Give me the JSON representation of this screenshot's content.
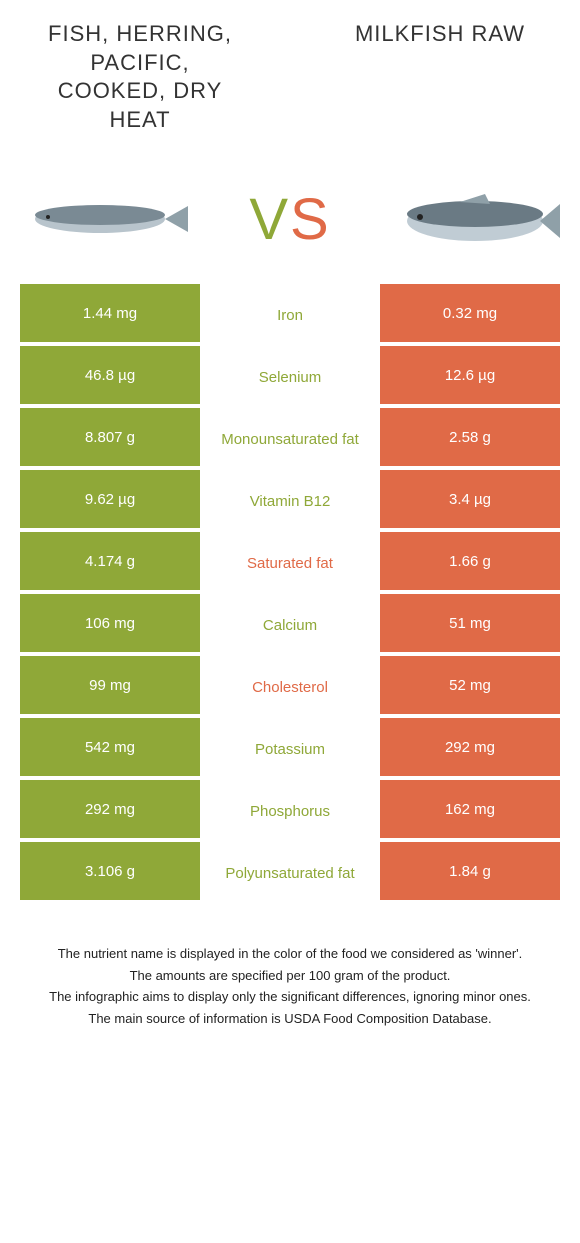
{
  "titles": {
    "left": "Fish, herring, Pacific, cooked, dry heat",
    "right": "Milkfish raw"
  },
  "vs": {
    "v": "V",
    "s": "S"
  },
  "colors": {
    "left_bg": "#8fa838",
    "right_bg": "#e06a47",
    "left_text": "#ffffff",
    "right_text": "#ffffff",
    "green": "#8fa838",
    "orange": "#e06a47",
    "background": "#ffffff"
  },
  "rows": [
    {
      "left": "1.44 mg",
      "mid": "Iron",
      "right": "0.32 mg",
      "winner": "left"
    },
    {
      "left": "46.8 µg",
      "mid": "Selenium",
      "right": "12.6 µg",
      "winner": "left"
    },
    {
      "left": "8.807 g",
      "mid": "Monounsaturated fat",
      "right": "2.58 g",
      "winner": "left"
    },
    {
      "left": "9.62 µg",
      "mid": "Vitamin B12",
      "right": "3.4 µg",
      "winner": "left"
    },
    {
      "left": "4.174 g",
      "mid": "Saturated fat",
      "right": "1.66 g",
      "winner": "right"
    },
    {
      "left": "106 mg",
      "mid": "Calcium",
      "right": "51 mg",
      "winner": "left"
    },
    {
      "left": "99 mg",
      "mid": "Cholesterol",
      "right": "52 mg",
      "winner": "right"
    },
    {
      "left": "542 mg",
      "mid": "Potassium",
      "right": "292 mg",
      "winner": "left"
    },
    {
      "left": "292 mg",
      "mid": "Phosphorus",
      "right": "162 mg",
      "winner": "left"
    },
    {
      "left": "3.106 g",
      "mid": "Polyunsaturated fat",
      "right": "1.84 g",
      "winner": "left"
    }
  ],
  "footer": [
    "The nutrient name is displayed in the color of the food we considered as 'winner'.",
    "The amounts are specified per 100 gram of the product.",
    "The infographic aims to display only the significant differences, ignoring minor ones.",
    "The main source of information is USDA Food Composition Database."
  ],
  "fish_left_colors": {
    "body": "#b8c4cc",
    "body_dark": "#7a8a94",
    "tail": "#8fa0a8"
  },
  "fish_right_colors": {
    "body": "#c0ccd4",
    "body_dark": "#6a7a84",
    "tail": "#8fa0a8"
  }
}
